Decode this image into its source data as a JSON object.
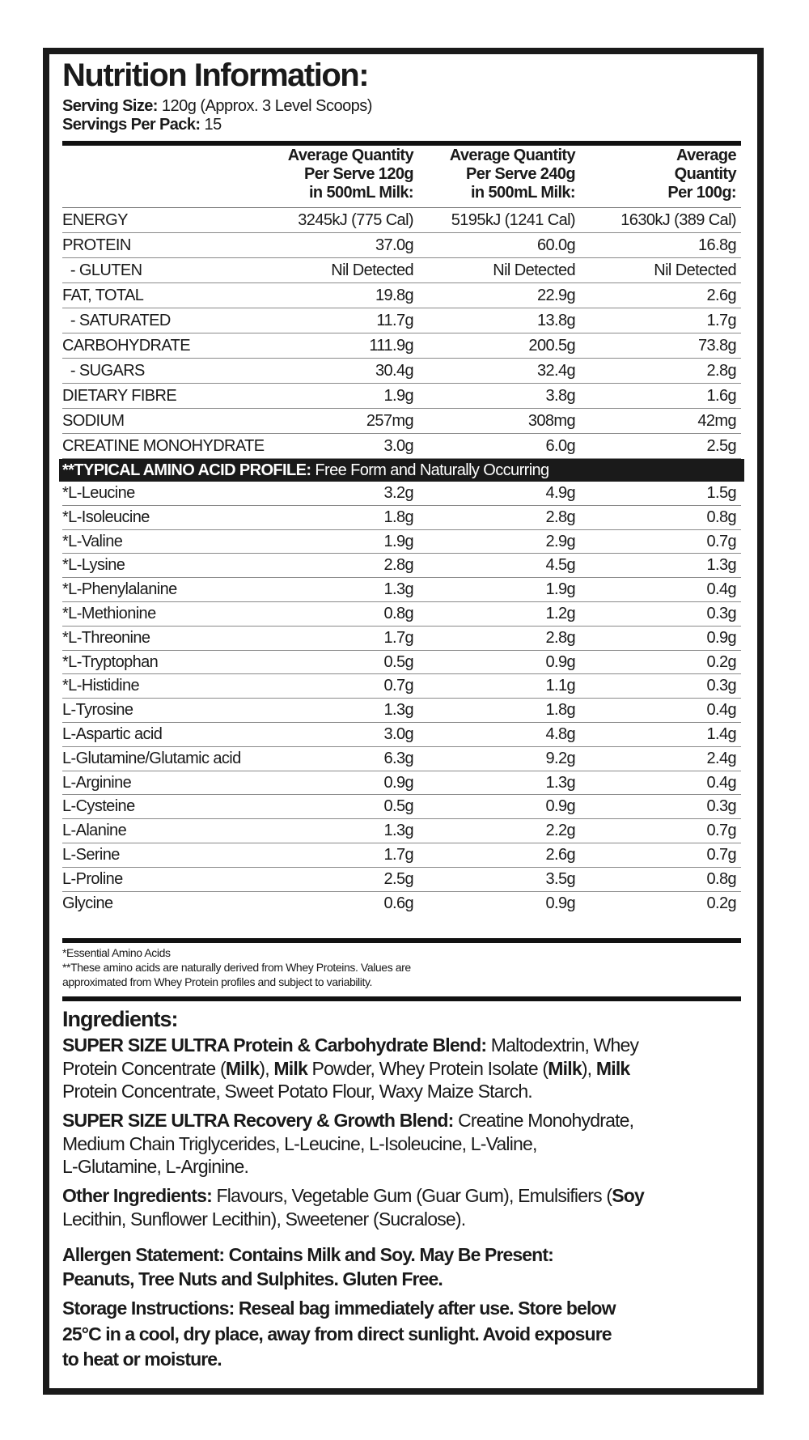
{
  "title": "Nutrition Information:",
  "serving_size": {
    "label": "Serving Size:",
    "value": "120g (Approx. 3 Level Scoops)"
  },
  "servings_per_pack": {
    "label": "Servings Per Pack:",
    "value": "15"
  },
  "columns": [
    [
      "Average Quantity",
      "Per Serve 120g",
      "in 500mL Milk:"
    ],
    [
      "Average Quantity",
      "Per Serve 240g",
      "in 500mL Milk:"
    ],
    [
      "Average",
      "Quantity",
      "Per 100g:"
    ]
  ],
  "nutrients": [
    {
      "label": "ENERGY",
      "values": [
        "3245kJ (775 Cal)",
        "5195kJ (1241 Cal)",
        "1630kJ (389 Cal)"
      ]
    },
    {
      "label": "PROTEIN",
      "values": [
        "37.0g",
        "60.0g",
        "16.8g"
      ]
    },
    {
      "label": "  - GLUTEN",
      "values": [
        "Nil Detected",
        "Nil Detected",
        "Nil Detected"
      ]
    },
    {
      "label": "FAT, TOTAL",
      "values": [
        "19.8g",
        "22.9g",
        "2.6g"
      ]
    },
    {
      "label": "  - SATURATED",
      "values": [
        "11.7g",
        "13.8g",
        "1.7g"
      ]
    },
    {
      "label": "CARBOHYDRATE",
      "values": [
        "111.9g",
        "200.5g",
        "73.8g"
      ]
    },
    {
      "label": "  - SUGARS",
      "values": [
        "30.4g",
        "32.4g",
        "2.8g"
      ]
    },
    {
      "label": "DIETARY FIBRE",
      "values": [
        "1.9g",
        "3.8g",
        "1.6g"
      ]
    },
    {
      "label": "SODIUM",
      "values": [
        "257mg",
        "308mg",
        "42mg"
      ]
    },
    {
      "label": "CREATINE MONOHYDRATE",
      "values": [
        "3.0g",
        "6.0g",
        "2.5g"
      ]
    }
  ],
  "amino_header": {
    "bold": "**TYPICAL AMINO ACID PROFILE:",
    "rest": " Free Form and Naturally Occurring"
  },
  "amino_acids": [
    {
      "label": "*L-Leucine",
      "values": [
        "3.2g",
        "4.9g",
        "1.5g"
      ]
    },
    {
      "label": "*L-Isoleucine",
      "values": [
        "1.8g",
        "2.8g",
        "0.8g"
      ]
    },
    {
      "label": "*L-Valine",
      "values": [
        "1.9g",
        "2.9g",
        "0.7g"
      ]
    },
    {
      "label": "*L-Lysine",
      "values": [
        "2.8g",
        "4.5g",
        "1.3g"
      ]
    },
    {
      "label": "*L-Phenylalanine",
      "values": [
        "1.3g",
        "1.9g",
        "0.4g"
      ]
    },
    {
      "label": "*L-Methionine",
      "values": [
        "0.8g",
        "1.2g",
        "0.3g"
      ]
    },
    {
      "label": "*L-Threonine",
      "values": [
        "1.7g",
        "2.8g",
        "0.9g"
      ]
    },
    {
      "label": "*L-Tryptophan",
      "values": [
        "0.5g",
        "0.9g",
        "0.2g"
      ]
    },
    {
      "label": "*L-Histidine",
      "values": [
        "0.7g",
        "1.1g",
        "0.3g"
      ]
    },
    {
      "label": "L-Tyrosine",
      "values": [
        "1.3g",
        "1.8g",
        "0.4g"
      ]
    },
    {
      "label": "L-Aspartic acid",
      "values": [
        "3.0g",
        "4.8g",
        "1.4g"
      ]
    },
    {
      "label": "L-Glutamine/Glutamic acid",
      "values": [
        "6.3g",
        "9.2g",
        "2.4g"
      ]
    },
    {
      "label": "L-Arginine",
      "values": [
        "0.9g",
        "1.3g",
        "0.4g"
      ]
    },
    {
      "label": "L-Cysteine",
      "values": [
        "0.5g",
        "0.9g",
        "0.3g"
      ]
    },
    {
      "label": "L-Alanine",
      "values": [
        "1.3g",
        "2.2g",
        "0.7g"
      ]
    },
    {
      "label": "L-Serine",
      "values": [
        "1.7g",
        "2.6g",
        "0.7g"
      ]
    },
    {
      "label": "L-Proline",
      "values": [
        "2.5g",
        "3.5g",
        "0.8g"
      ]
    },
    {
      "label": "Glycine",
      "values": [
        "0.6g",
        "0.9g",
        "0.2g"
      ]
    }
  ],
  "footnotes": [
    "*Essential Amino Acids",
    "**These amino acids are naturally derived from Whey Proteins. Values are",
    "approximated from Whey Protein profiles and subject to variability."
  ],
  "ingredients_title": "Ingredients:",
  "ingredient_paragraphs": [
    [
      [
        {
          "t": "SUPER SIZE ULTRA Protein & Carbohydrate Blend:",
          "b": true
        },
        {
          "t": " Maltodextrin, Whey"
        }
      ],
      [
        {
          "t": "Protein Concentrate ("
        },
        {
          "t": "Milk",
          "b": true
        },
        {
          "t": "), "
        },
        {
          "t": "Milk",
          "b": true
        },
        {
          "t": " Powder, Whey Protein Isolate ("
        },
        {
          "t": "Milk",
          "b": true
        },
        {
          "t": "), "
        },
        {
          "t": "Milk",
          "b": true
        }
      ],
      [
        {
          "t": "Protein Concentrate, Sweet Potato Flour, Waxy Maize Starch."
        }
      ]
    ],
    [
      [
        {
          "t": "SUPER SIZE ULTRA Recovery & Growth Blend:",
          "b": true
        },
        {
          "t": " Creatine Monohydrate,"
        }
      ],
      [
        {
          "t": "Medium Chain Triglycerides, L-Leucine, L-Isoleucine, L-Valine,"
        }
      ],
      [
        {
          "t": "L-Glutamine, L-Arginine."
        }
      ]
    ],
    [
      [
        {
          "t": "Other Ingredients:",
          "b": true
        },
        {
          "t": " Flavours, Vegetable Gum (Guar Gum), Emulsifiers ("
        },
        {
          "t": "Soy",
          "b": true
        }
      ],
      [
        {
          "t": "Lecithin, Sunflower Lecithin), Sweetener (Sucralose)."
        }
      ]
    ]
  ],
  "allergen_lines": [
    "Allergen Statement: Contains Milk and Soy. May Be Present:",
    "Peanuts, Tree Nuts and Sulphites. Gluten Free."
  ],
  "storage_lines": [
    "Storage Instructions: Reseal bag immediately after use. Store below",
    "25°C in a cool, dry place, away from direct sunlight. Avoid exposure",
    "to heat or moisture."
  ]
}
